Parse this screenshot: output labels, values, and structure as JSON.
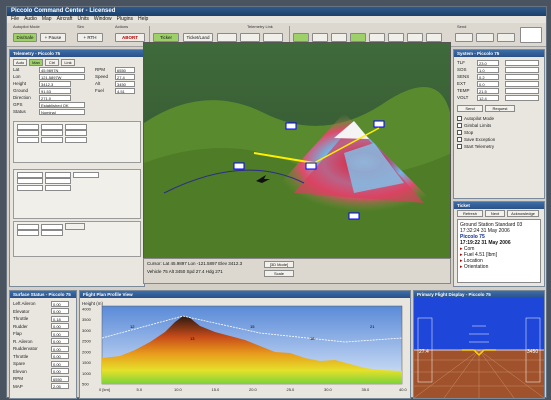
{
  "app": {
    "title": "Piccolo Command Center - Licensed",
    "menus": [
      "File",
      "Audio",
      "Map",
      "Aircraft",
      "Units",
      "Window",
      "Plugins",
      "Help"
    ]
  },
  "toolbar": {
    "group_labels": [
      "Autopilot Mode",
      "Sim",
      "Actions",
      "Send"
    ],
    "buttons": [
      "Dis/Safe",
      "+ Pause",
      "+ RTH",
      "ABORT",
      "Ticker",
      "Ticket/Land"
    ],
    "telemetry_label": "Telemetry Link"
  },
  "vehicle_panel": {
    "title": "Telemetry - Piccolo 75",
    "tabs": [
      "Auto",
      "Man",
      "Ctrl",
      "Link"
    ],
    "lat_label": "Lat",
    "lat": "45.9897N",
    "lon_label": "Lon",
    "lon": "121.5897W",
    "height_label": "Height",
    "height": "3412.3",
    "ground_label": "Ground",
    "ground": "91.53",
    "direction_label": "Direction",
    "direction": "271.0",
    "gps_label": "GPS",
    "gps": "Established OK",
    "status_label": "Status",
    "status": "Nominal",
    "rpm_label": "RPM",
    "rpm": "6550",
    "speed_label": "Speed",
    "speed": "27.4",
    "alt_label": "Alt",
    "alt": "3450",
    "fuel_label": "Fuel",
    "fuel": "4.51"
  },
  "vehicle_panel_right": {
    "title": "System - Piccolo 75",
    "fields": [
      "TLF",
      "SOS",
      "SENS",
      "EXT",
      "TEMP",
      "VOLT"
    ],
    "values": [
      "23.0",
      "1.0",
      "0.2",
      "0.0",
      "21.5",
      "12.4"
    ],
    "buttons": [
      "Send",
      "Request"
    ],
    "checks": [
      "Autopilot Mode",
      "Gimbal Limits",
      "Stop",
      "Save Exception",
      "Start Telemetry"
    ]
  },
  "map3d": {
    "status_text": "Cursor: Lat 45.9897 Lon -121.5897 Elev 3412.3",
    "status_text2": "Vehicle 75  Alt 3450  Spd 27.4  Hdg 271",
    "zoom_btn": "[3D Mode]",
    "scale_btn": "Scale"
  },
  "ticker": {
    "title": "Ticket",
    "name": "Ground Station Standard 03",
    "time1": "17:32:24  31 May 2006",
    "subject": "Piccolo 75",
    "time2": "17:19:22  31 May 2006",
    "items": [
      "Com",
      "Fuel 4.51 [lbm]",
      "Location",
      "Orientation"
    ],
    "buttons": [
      "Refresh",
      "Next",
      "Acknowledge"
    ]
  },
  "surfaces": {
    "title": "Surface Status - Piccolo 75",
    "rows": [
      [
        "Left Aileron",
        "0.00"
      ],
      [
        "Elevator",
        "0.00"
      ],
      [
        "Throttle",
        "0.18"
      ],
      [
        "Rudder",
        "0.00"
      ],
      [
        "Flap",
        "0.00"
      ],
      [
        "R. Aileron",
        "0.00"
      ],
      [
        "Ruddervator",
        "0.00"
      ],
      [
        "Throttle",
        "0.00"
      ],
      [
        "Spare",
        "0.00"
      ],
      [
        "Elevon",
        "0.00"
      ],
      [
        "RPM",
        "6550"
      ],
      [
        "MAP",
        "2.05"
      ]
    ]
  },
  "profile": {
    "title": "Flight Plan Profile View",
    "ylabel": "Height (m)",
    "yticks": [
      "4000",
      "3500",
      "3000",
      "2500",
      "2000",
      "1500",
      "1000",
      "500"
    ],
    "xticks": [
      "0 [km]",
      "5.0",
      "10.0",
      "15.0",
      "20.0",
      "25.0",
      "30.0",
      "35.0",
      "40.0"
    ],
    "tags": [
      "12",
      "13",
      "15",
      "18",
      "21"
    ]
  },
  "pfd": {
    "title": "Primary Flight Display - Piccolo 75",
    "speed": "27.4",
    "alt": "3450"
  }
}
